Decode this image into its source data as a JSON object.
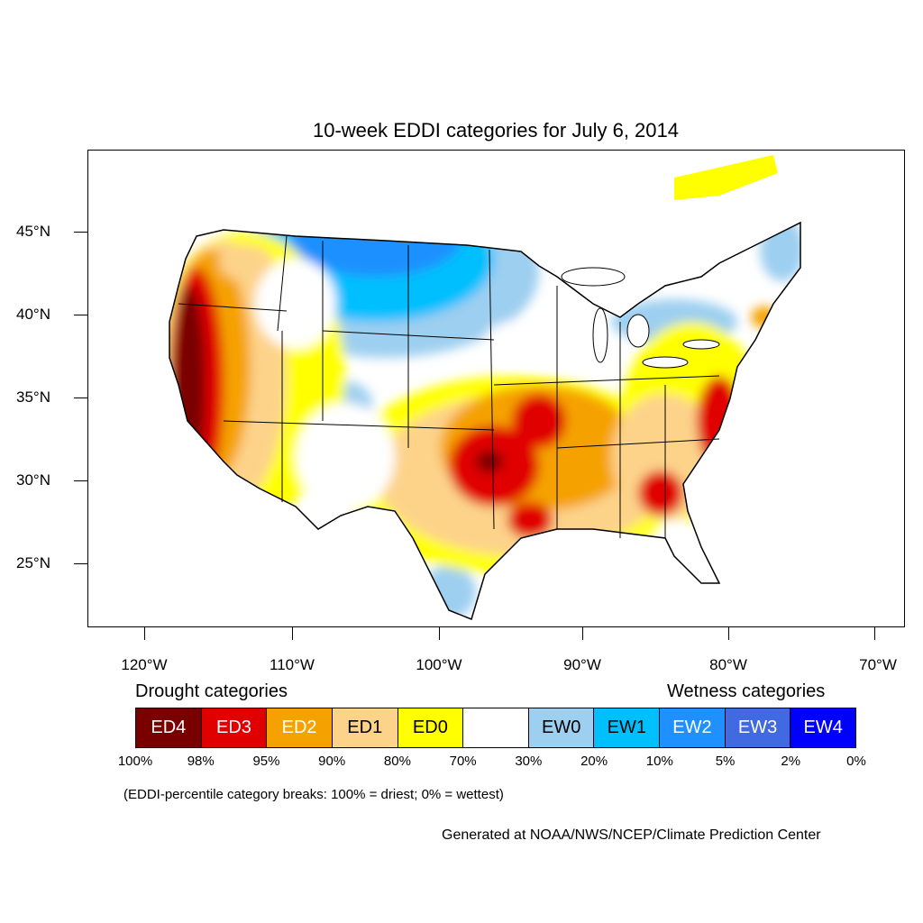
{
  "title": "10-week EDDI categories for July 6, 2014",
  "map": {
    "lat_labels": [
      "45°N",
      "40°N",
      "35°N",
      "30°N",
      "25°N"
    ],
    "lon_labels": [
      "120°W",
      "110°W",
      "100°W",
      "90°W",
      "80°W",
      "70°W"
    ],
    "colors": {
      "ED4": "#7a0000",
      "ED3": "#e00000",
      "ED2": "#f5a200",
      "ED1": "#fdd38a",
      "ED0": "#ffff00",
      "neutral": "#ffffff",
      "EW0": "#9dcff0",
      "EW1": "#00bfff",
      "EW2": "#1e90ff",
      "EW3": "#4169e1",
      "EW4": "#0000ff"
    }
  },
  "legend": {
    "drought_heading": "Drought categories",
    "wetness_heading": "Wetness categories",
    "categories": [
      {
        "label": "ED4",
        "color": "#7a0000",
        "text_color": "#ffffff"
      },
      {
        "label": "ED3",
        "color": "#e00000",
        "text_color": "#ffffff"
      },
      {
        "label": "ED2",
        "color": "#f5a200",
        "text_color": "#ffffff"
      },
      {
        "label": "ED1",
        "color": "#fdd38a",
        "text_color": "#000000"
      },
      {
        "label": "ED0",
        "color": "#ffff00",
        "text_color": "#000000"
      },
      {
        "label": "",
        "color": "#ffffff",
        "text_color": "#000000"
      },
      {
        "label": "EW0",
        "color": "#9dcff0",
        "text_color": "#000000"
      },
      {
        "label": "EW1",
        "color": "#00bfff",
        "text_color": "#000000"
      },
      {
        "label": "EW2",
        "color": "#1e90ff",
        "text_color": "#ffffff"
      },
      {
        "label": "EW3",
        "color": "#4169e1",
        "text_color": "#ffffff"
      },
      {
        "label": "EW4",
        "color": "#0000ff",
        "text_color": "#ffffff"
      }
    ],
    "percent_breaks": [
      "100%",
      "98%",
      "95%",
      "90%",
      "80%",
      "70%",
      "30%",
      "20%",
      "10%",
      "5%",
      "2%",
      "0%"
    ]
  },
  "note": "(EDDI-percentile category breaks: 100% = driest; 0% = wettest)",
  "credit": "Generated at NOAA/NWS/NCEP/Climate Prediction Center"
}
